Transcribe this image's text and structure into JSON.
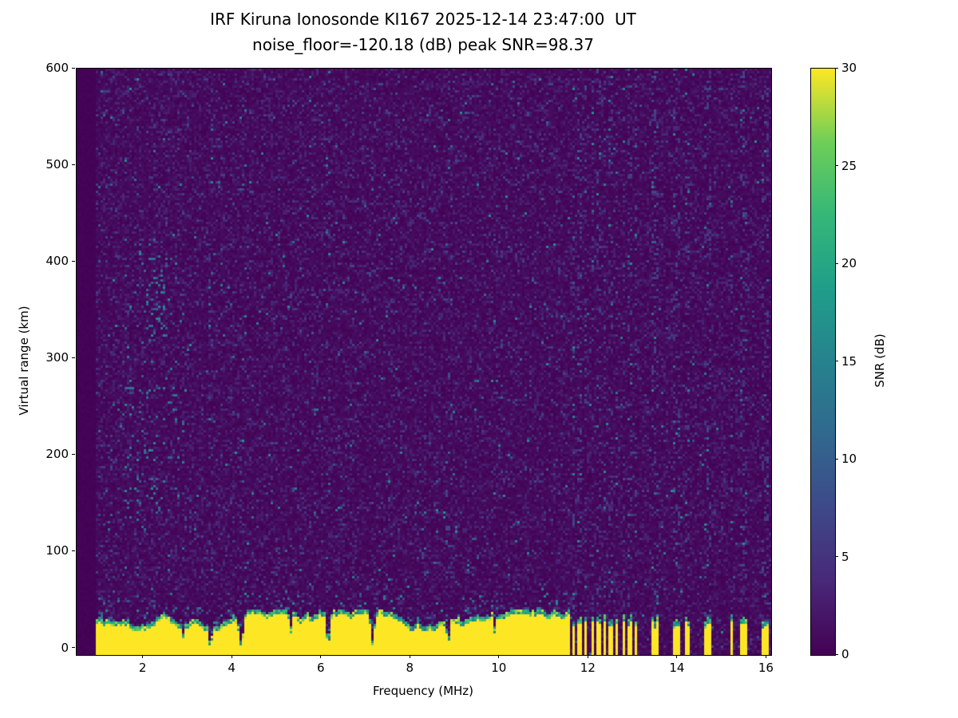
{
  "chart_data": {
    "type": "heatmap",
    "title": "IRF Kiruna Ionosonde KI167 2025-12-14 23:47:00  UT",
    "subtitle": "noise_floor=-120.18 (dB) peak SNR=98.37",
    "station": "IRF Kiruna Ionosonde KI167",
    "timestamp_ut": "2025-12-14 23:47:00",
    "noise_floor_db": -120.18,
    "peak_snr_db": 98.37,
    "xlabel": "Frequency (MHz)",
    "ylabel": "Virtual range (km)",
    "colorbar_label": "SNR (dB)",
    "x_range_mhz": [
      0.5,
      16.1
    ],
    "y_range_km": [
      -7,
      600
    ],
    "snr_range_db": [
      0,
      30
    ],
    "x_ticks": [
      2,
      4,
      6,
      8,
      10,
      12,
      14,
      16
    ],
    "y_ticks": [
      0,
      100,
      200,
      300,
      400,
      500,
      600
    ],
    "colorbar_ticks": [
      0,
      5,
      10,
      15,
      20,
      25,
      30
    ],
    "colormap": "viridis",
    "colormap_stops": [
      [
        0.0,
        "#440154"
      ],
      [
        0.125,
        "#482878"
      ],
      [
        0.25,
        "#3e4989"
      ],
      [
        0.375,
        "#31688e"
      ],
      [
        0.5,
        "#26828e"
      ],
      [
        0.625,
        "#1f9e89"
      ],
      [
        0.75,
        "#35b779"
      ],
      [
        0.875,
        "#6ece58"
      ],
      [
        1.0,
        "#fde725"
      ]
    ],
    "features": {
      "data_start_mhz": 0.95,
      "background_noise": {
        "typical_snr_db": 1.0,
        "description": "dark viridis speckle noise over full ionogram"
      },
      "ground_clutter": {
        "x_start_mhz": 0.95,
        "x_end_mhz": 11.6,
        "top_km_mean": 30,
        "top_km_min": 23,
        "top_km_max": 44,
        "snr_db": 30,
        "notches_mhz": [
          {
            "f": 2.9,
            "w": 0.05,
            "top": 13
          },
          {
            "f": 3.5,
            "w": 0.08,
            "top": 4
          },
          {
            "f": 4.2,
            "w": 0.1,
            "top": 3
          },
          {
            "f": 5.3,
            "w": 0.05,
            "top": 14
          },
          {
            "f": 6.15,
            "w": 0.09,
            "top": 4
          },
          {
            "f": 7.15,
            "w": 0.08,
            "top": 5
          },
          {
            "f": 8.85,
            "w": 0.07,
            "top": 7
          },
          {
            "f": 9.9,
            "w": 0.05,
            "top": 15
          }
        ]
      },
      "interference_stripes": {
        "top_km": 25,
        "width_mhz": 0.08,
        "snr_db": 30,
        "stripes_mhz": [
          11.67,
          11.8,
          11.94,
          12.08,
          12.22,
          12.36,
          12.5,
          12.64,
          12.78,
          12.92,
          13.05,
          13.45,
          13.53,
          13.95,
          14.04,
          14.22,
          14.66,
          14.74,
          15.2,
          15.45,
          15.53,
          15.9,
          15.99
        ]
      },
      "echo_clusters": [
        {
          "x_mhz": [
            1.6,
            2.9
          ],
          "y_km": [
            140,
            430
          ],
          "density": 0.035
        },
        {
          "x_mhz": [
            2.05,
            2.55
          ],
          "y_km": [
            320,
            410
          ],
          "density": 0.09
        },
        {
          "x_mhz": [
            1.85,
            2.35
          ],
          "y_km": [
            150,
            205
          ],
          "density": 0.08
        }
      ]
    }
  }
}
